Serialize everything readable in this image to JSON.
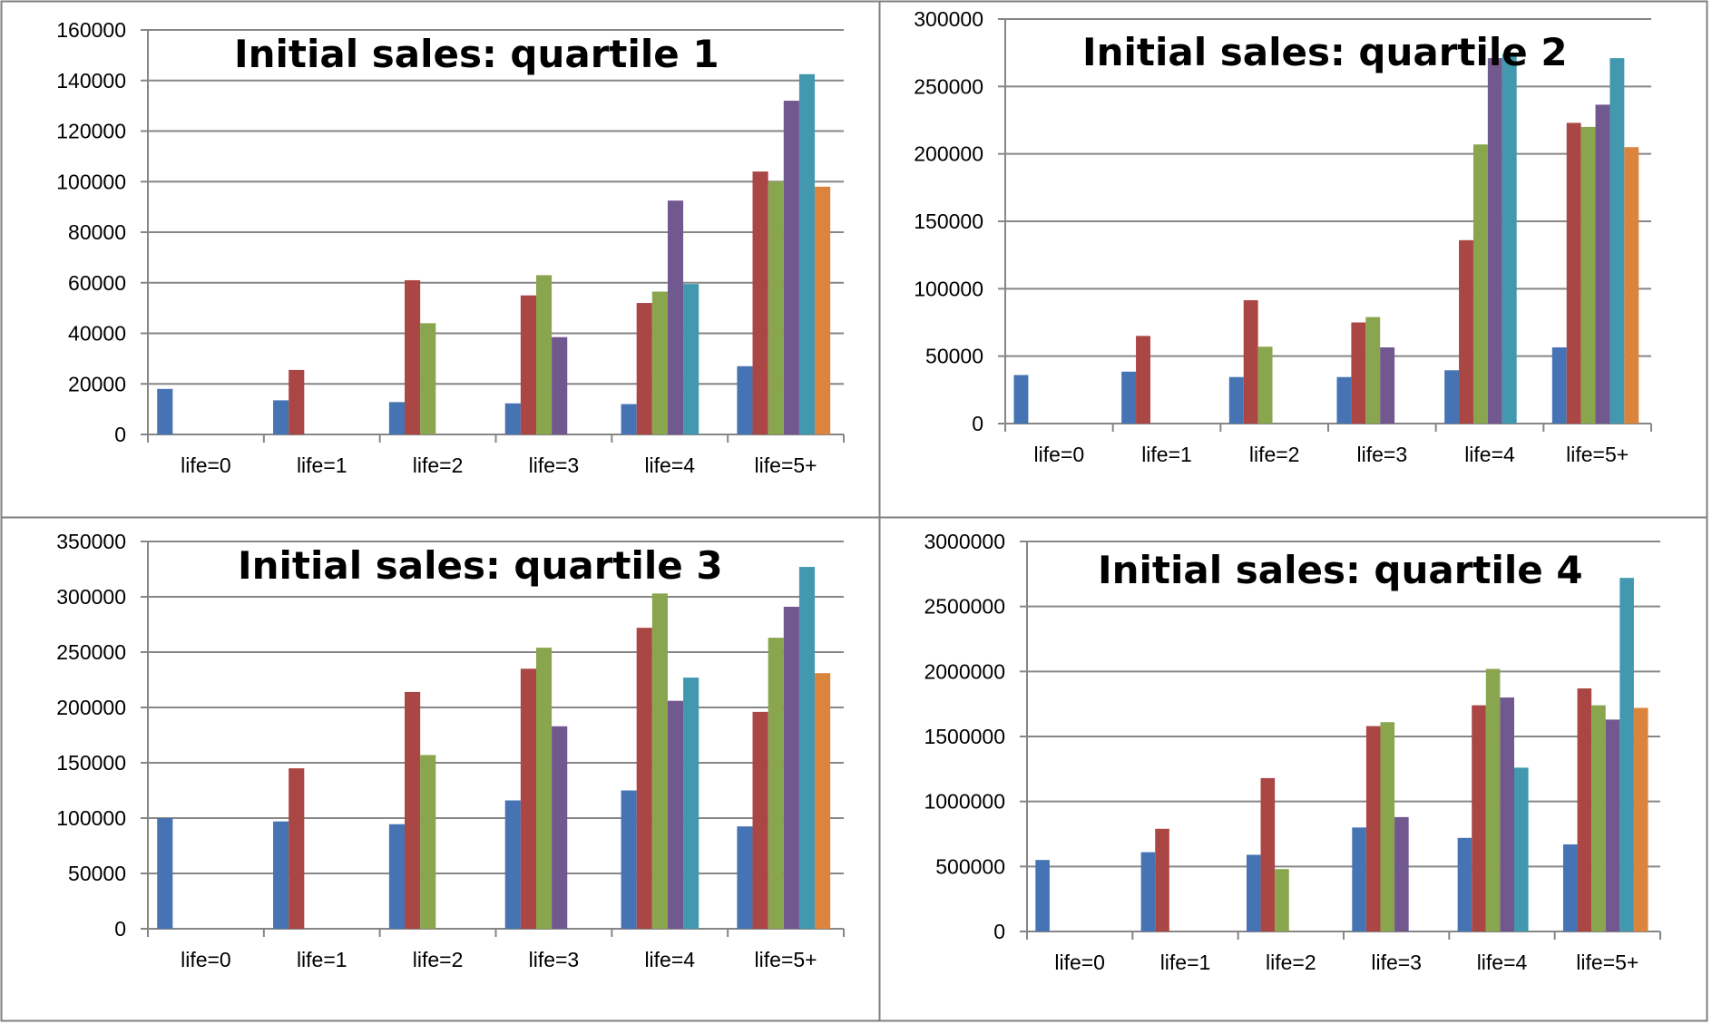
{
  "colors": {
    "series": [
      "#4573B3",
      "#AA4644",
      "#89A54E",
      "#71588F",
      "#4198AF",
      "#DB843D"
    ],
    "grid": "#868686",
    "axis": "#868686",
    "border": "#7f7f7f"
  },
  "chart_data": [
    {
      "type": "bar",
      "title": "Initial sales: quartile 1",
      "categories": [
        "life=0",
        "life=1",
        "life=2",
        "life=3",
        "life=4",
        "life=5+"
      ],
      "yticks": [
        "0",
        "20000",
        "40000",
        "60000",
        "80000",
        "100000",
        "120000",
        "140000",
        "160000"
      ],
      "ylim": [
        0,
        160000
      ],
      "grid": true,
      "series": [
        {
          "values": [
            18000,
            13500,
            12800,
            12300,
            12000,
            27000
          ]
        },
        {
          "values": [
            null,
            25500,
            61000,
            55000,
            52000,
            104000
          ]
        },
        {
          "values": [
            null,
            null,
            44000,
            63000,
            56500,
            100000
          ]
        },
        {
          "values": [
            null,
            null,
            null,
            38500,
            92500,
            132000
          ]
        },
        {
          "values": [
            null,
            null,
            null,
            null,
            59500,
            142500
          ]
        },
        {
          "values": [
            null,
            null,
            null,
            null,
            null,
            98000
          ]
        }
      ]
    },
    {
      "type": "bar",
      "title": "Initial sales: quartile 2",
      "categories": [
        "life=0",
        "life=1",
        "life=2",
        "life=3",
        "life=4",
        "life=5+"
      ],
      "yticks": [
        "0",
        "50000",
        "100000",
        "150000",
        "200000",
        "250000",
        "300000"
      ],
      "ylim": [
        0,
        300000
      ],
      "grid": true,
      "series": [
        {
          "values": [
            36000,
            38500,
            34500,
            34500,
            39500,
            56500
          ]
        },
        {
          "values": [
            null,
            65000,
            91500,
            75000,
            136000,
            223000
          ]
        },
        {
          "values": [
            null,
            null,
            57000,
            79000,
            207000,
            220000
          ]
        },
        {
          "values": [
            null,
            null,
            null,
            56500,
            271000,
            236500
          ]
        },
        {
          "values": [
            null,
            null,
            null,
            null,
            274000,
            271000
          ]
        },
        {
          "values": [
            null,
            null,
            null,
            null,
            null,
            205000
          ]
        }
      ]
    },
    {
      "type": "bar",
      "title": "Initial sales: quartile 3",
      "categories": [
        "life=0",
        "life=1",
        "life=2",
        "life=3",
        "life=4",
        "life=5+"
      ],
      "yticks": [
        "0",
        "50000",
        "100000",
        "150000",
        "200000",
        "250000",
        "300000",
        "350000"
      ],
      "ylim": [
        0,
        350000
      ],
      "grid": true,
      "series": [
        {
          "values": [
            100000,
            97000,
            94500,
            116000,
            125000,
            92500
          ]
        },
        {
          "values": [
            null,
            145000,
            214000,
            235000,
            272000,
            196000
          ]
        },
        {
          "values": [
            null,
            null,
            157000,
            254000,
            303000,
            263000
          ]
        },
        {
          "values": [
            null,
            null,
            null,
            183000,
            206000,
            291000
          ]
        },
        {
          "values": [
            null,
            null,
            null,
            null,
            227000,
            327000
          ]
        },
        {
          "values": [
            null,
            null,
            null,
            null,
            null,
            231000
          ]
        }
      ]
    },
    {
      "type": "bar",
      "title": "Initial sales: quartile 4",
      "categories": [
        "life=0",
        "life=1",
        "life=2",
        "life=3",
        "life=4",
        "life=5+"
      ],
      "yticks": [
        "0",
        "500000",
        "1000000",
        "1500000",
        "2000000",
        "2500000",
        "3000000"
      ],
      "ylim": [
        0,
        3000000
      ],
      "grid": true,
      "series": [
        {
          "values": [
            550000,
            610000,
            590000,
            800000,
            720000,
            670000
          ]
        },
        {
          "values": [
            null,
            790000,
            1180000,
            1580000,
            1740000,
            1870000
          ]
        },
        {
          "values": [
            null,
            null,
            480000,
            1610000,
            2020000,
            1740000
          ]
        },
        {
          "values": [
            null,
            null,
            null,
            880000,
            1800000,
            1630000
          ]
        },
        {
          "values": [
            null,
            null,
            null,
            null,
            1260000,
            2720000
          ]
        },
        {
          "values": [
            null,
            null,
            null,
            null,
            null,
            1720000
          ]
        }
      ]
    }
  ]
}
